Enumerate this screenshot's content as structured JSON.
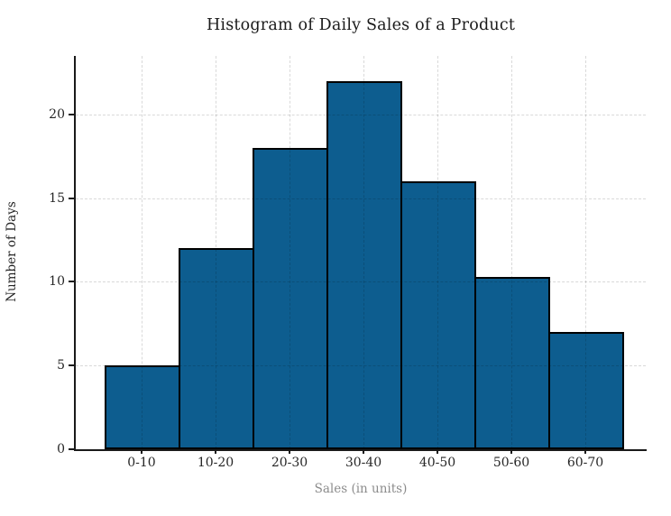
{
  "chart_data": {
    "type": "bar",
    "subtype": "histogram",
    "title": "Histogram of Daily Sales of a Product",
    "xlabel": "Sales (in units)",
    "ylabel": "Number of Days",
    "categories": [
      "0-10",
      "10-20",
      "20-30",
      "30-40",
      "40-50",
      "50-60",
      "60-70"
    ],
    "values": [
      5,
      12,
      18,
      22,
      16,
      10.3,
      7
    ],
    "yticks": [
      0,
      5,
      10,
      15,
      20
    ],
    "ylim": [
      0,
      23.5
    ],
    "grid": {
      "visible": true,
      "style": "dashed",
      "axes": "both",
      "color": "#dddddd"
    },
    "legend_position": "none",
    "bar_fill_color": "#0d5d8f",
    "bar_edge_color": "#000000",
    "title_color": "#1a1a1a",
    "tick_label_color": "#262626",
    "xlabel_color": "#8c8c8c"
  }
}
